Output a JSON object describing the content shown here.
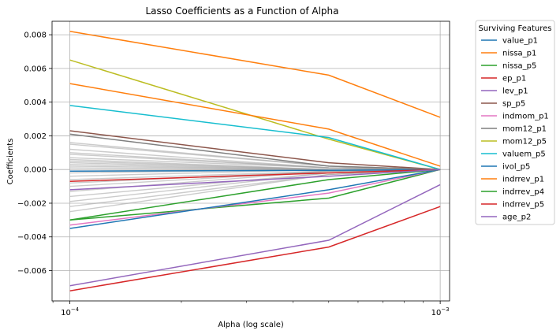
{
  "chart_data": {
    "type": "line",
    "title": "Lasso Coefficients as a Function of Alpha",
    "xlabel": "Alpha (log scale)",
    "ylabel": "Coefficients",
    "xscale": "log",
    "xlim": [
      8.95e-05,
      0.00106
    ],
    "ylim": [
      -0.0078,
      0.0088
    ],
    "x": [
      0.0001,
      0.0005,
      0.001
    ],
    "x_ticks": [
      {
        "value": 0.0001,
        "base": "10",
        "exp": "−4"
      },
      {
        "value": 0.001,
        "base": "10",
        "exp": "−3"
      }
    ],
    "y_ticks": [
      -0.006,
      -0.004,
      -0.002,
      0.0,
      0.002,
      0.004,
      0.006,
      0.008
    ],
    "y_tick_labels": [
      "−0.006",
      "−0.004",
      "−0.002",
      "0.000",
      "0.002",
      "0.004",
      "0.006",
      "0.008"
    ],
    "grid": true,
    "legend": {
      "title": "Surviving Features",
      "placement": "outside-right"
    },
    "background_series_color": "#a0a0a0",
    "background_series": [
      [
        0.0016,
        0.0002,
        0.0
      ],
      [
        0.0015,
        0.0002,
        0.0
      ],
      [
        0.0012,
        0.0001,
        0.0
      ],
      [
        0.001,
        0.0001,
        0.0
      ],
      [
        0.0009,
        0.0001,
        0.0
      ],
      [
        0.0007,
        0.0001,
        0.0
      ],
      [
        0.0006,
        0.0,
        0.0
      ],
      [
        0.0005,
        0.0,
        0.0
      ],
      [
        0.0004,
        0.0,
        0.0
      ],
      [
        0.0003,
        0.0,
        0.0
      ],
      [
        0.0002,
        0.0,
        0.0
      ],
      [
        0.0001,
        0.0,
        0.0
      ],
      [
        -0.0001,
        0.0,
        0.0
      ],
      [
        -0.0002,
        0.0,
        0.0
      ],
      [
        -0.0004,
        0.0,
        0.0
      ],
      [
        -0.0006,
        -0.0001,
        0.0
      ],
      [
        -0.0008,
        -0.0001,
        0.0
      ],
      [
        -0.001,
        -0.0001,
        0.0
      ],
      [
        -0.0013,
        -0.0001,
        0.0
      ],
      [
        -0.0016,
        -0.0002,
        0.0
      ],
      [
        -0.0019,
        -0.0002,
        0.0
      ],
      [
        -0.0022,
        -0.0003,
        0.0
      ],
      [
        -0.0025,
        -0.0003,
        0.0
      ]
    ],
    "series": [
      {
        "name": "value_p1",
        "color": "#1f77b4",
        "values": [
          -0.0001,
          -5e-05,
          0.0
        ]
      },
      {
        "name": "nissa_p1",
        "color": "#ff7f0e",
        "values": [
          0.0082,
          0.0056,
          0.0031
        ]
      },
      {
        "name": "nissa_p5",
        "color": "#2ca02c",
        "values": [
          -0.003,
          -0.0017,
          0.0
        ]
      },
      {
        "name": "ep_p1",
        "color": "#d62728",
        "values": [
          -0.0072,
          -0.0046,
          -0.0022
        ]
      },
      {
        "name": "lev_p1",
        "color": "#9467bd",
        "values": [
          -0.0069,
          -0.0042,
          -0.0009
        ]
      },
      {
        "name": "sp_p5",
        "color": "#8c564b",
        "values": [
          0.0023,
          0.0004,
          0.0
        ]
      },
      {
        "name": "indmom_p1",
        "color": "#e377c2",
        "values": [
          -0.0033,
          -0.0014,
          0.0
        ]
      },
      {
        "name": "mom12_p1",
        "color": "#7f7f7f",
        "values": [
          0.0021,
          0.0002,
          0.0
        ]
      },
      {
        "name": "mom12_p5",
        "color": "#bcbd22",
        "values": [
          0.0065,
          0.0018,
          0.0
        ]
      },
      {
        "name": "valuem_p5",
        "color": "#17becf",
        "values": [
          0.0038,
          0.0019,
          0.0
        ]
      },
      {
        "name": "ivol_p5",
        "color": "#1f77b4",
        "values": [
          -0.0035,
          -0.0012,
          0.0
        ]
      },
      {
        "name": "indrrev_p1",
        "color": "#ff7f0e",
        "values": [
          0.0051,
          0.0024,
          0.0002
        ]
      },
      {
        "name": "indrrev_p4",
        "color": "#2ca02c",
        "values": [
          -0.003,
          -0.0006,
          0.0
        ]
      },
      {
        "name": "indrrev_p5",
        "color": "#d62728",
        "values": [
          -0.0007,
          -0.0002,
          0.0
        ]
      },
      {
        "name": "age_p2",
        "color": "#9467bd",
        "values": [
          -0.0012,
          -0.0004,
          0.0
        ]
      }
    ]
  }
}
